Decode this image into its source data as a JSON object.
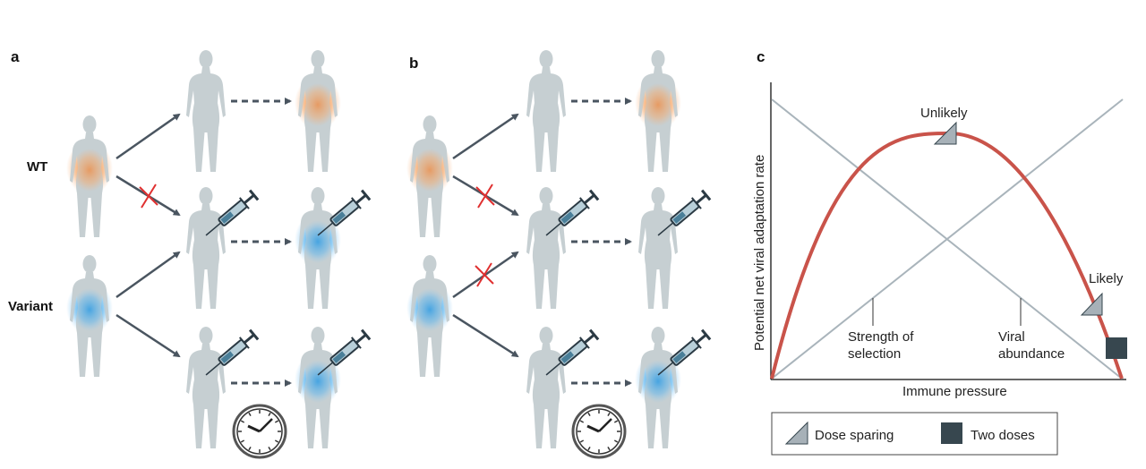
{
  "panel_a": {
    "label": "a",
    "row_labels": {
      "wt": "WT",
      "variant": "Variant"
    }
  },
  "panel_b": {
    "label": "b"
  },
  "panel_c": {
    "label": "c",
    "y_axis_label": "Potential net viral adaptation rate",
    "x_axis_label": "Immune pressure",
    "annotations": {
      "unlikely": "Unlikely",
      "likely": "Likely",
      "strength_of_selection": [
        "Strength of",
        "selection"
      ],
      "viral_abundance": [
        "Viral",
        "abundance"
      ]
    },
    "legend": [
      {
        "label": "Dose sparing",
        "marker": "triangle"
      },
      {
        "label": "Two doses",
        "marker": "square"
      }
    ],
    "colors": {
      "curve": "#c9534a",
      "lines": "#a9b4bb",
      "dose_sparing": "#a7b1b8",
      "two_doses": "#37474f"
    }
  },
  "colors": {
    "wt_infection": "#f0a060",
    "variant_infection": "#3aa0e0",
    "body": "#c6cfd2",
    "arrow": "#4a5560",
    "blocked": "#e03030"
  },
  "icons": [
    "person-silhouette",
    "syringe-icon",
    "clock-icon",
    "blocked-x-icon",
    "arrow",
    "dashed-arrow"
  ]
}
